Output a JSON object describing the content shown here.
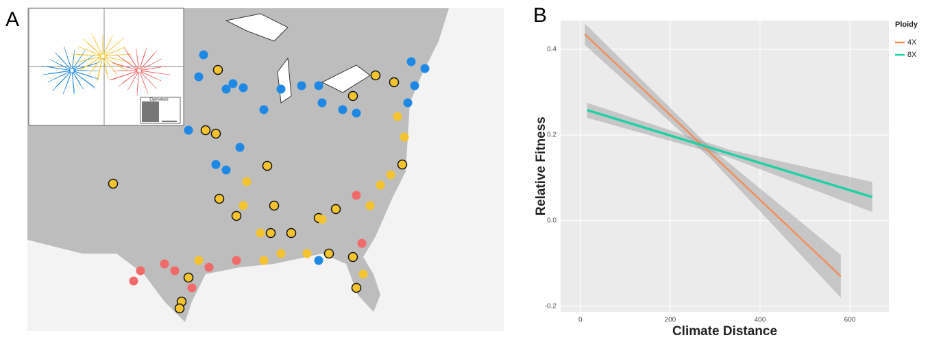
{
  "panel_a": {
    "label": "A",
    "inset_label": "Eigenvalues"
  },
  "chart_data": {
    "type": "line",
    "panel_label": "B",
    "xlabel": "Climate Distance",
    "ylabel": "Relative Fitness",
    "legend_title": "Ploidy",
    "legend": "right",
    "grid": true,
    "xlim": [
      -44,
      687
    ],
    "ylim": [
      -0.213,
      0.467
    ],
    "xticks": [
      0,
      200,
      400,
      600
    ],
    "yticks": [
      -0.2,
      {
        "value": 0,
        "label": "0.0"
      },
      0.2,
      0.4
    ],
    "series": [
      {
        "name": "4X",
        "color": "#f28e5b",
        "x": [
          10,
          290,
          580
        ],
        "values": [
          0.435,
          0.1575,
          -0.13
        ],
        "lower": [
          0.41,
          0.145,
          -0.18
        ],
        "upper": [
          0.46,
          0.17,
          -0.08
        ]
      },
      {
        "name": "8X",
        "color": "#1fd1a5",
        "x": [
          15,
          330,
          650
        ],
        "values": [
          0.258,
          0.157,
          0.055
        ],
        "lower": [
          0.24,
          0.148,
          0.02
        ],
        "upper": [
          0.275,
          0.166,
          0.09
        ]
      }
    ]
  }
}
